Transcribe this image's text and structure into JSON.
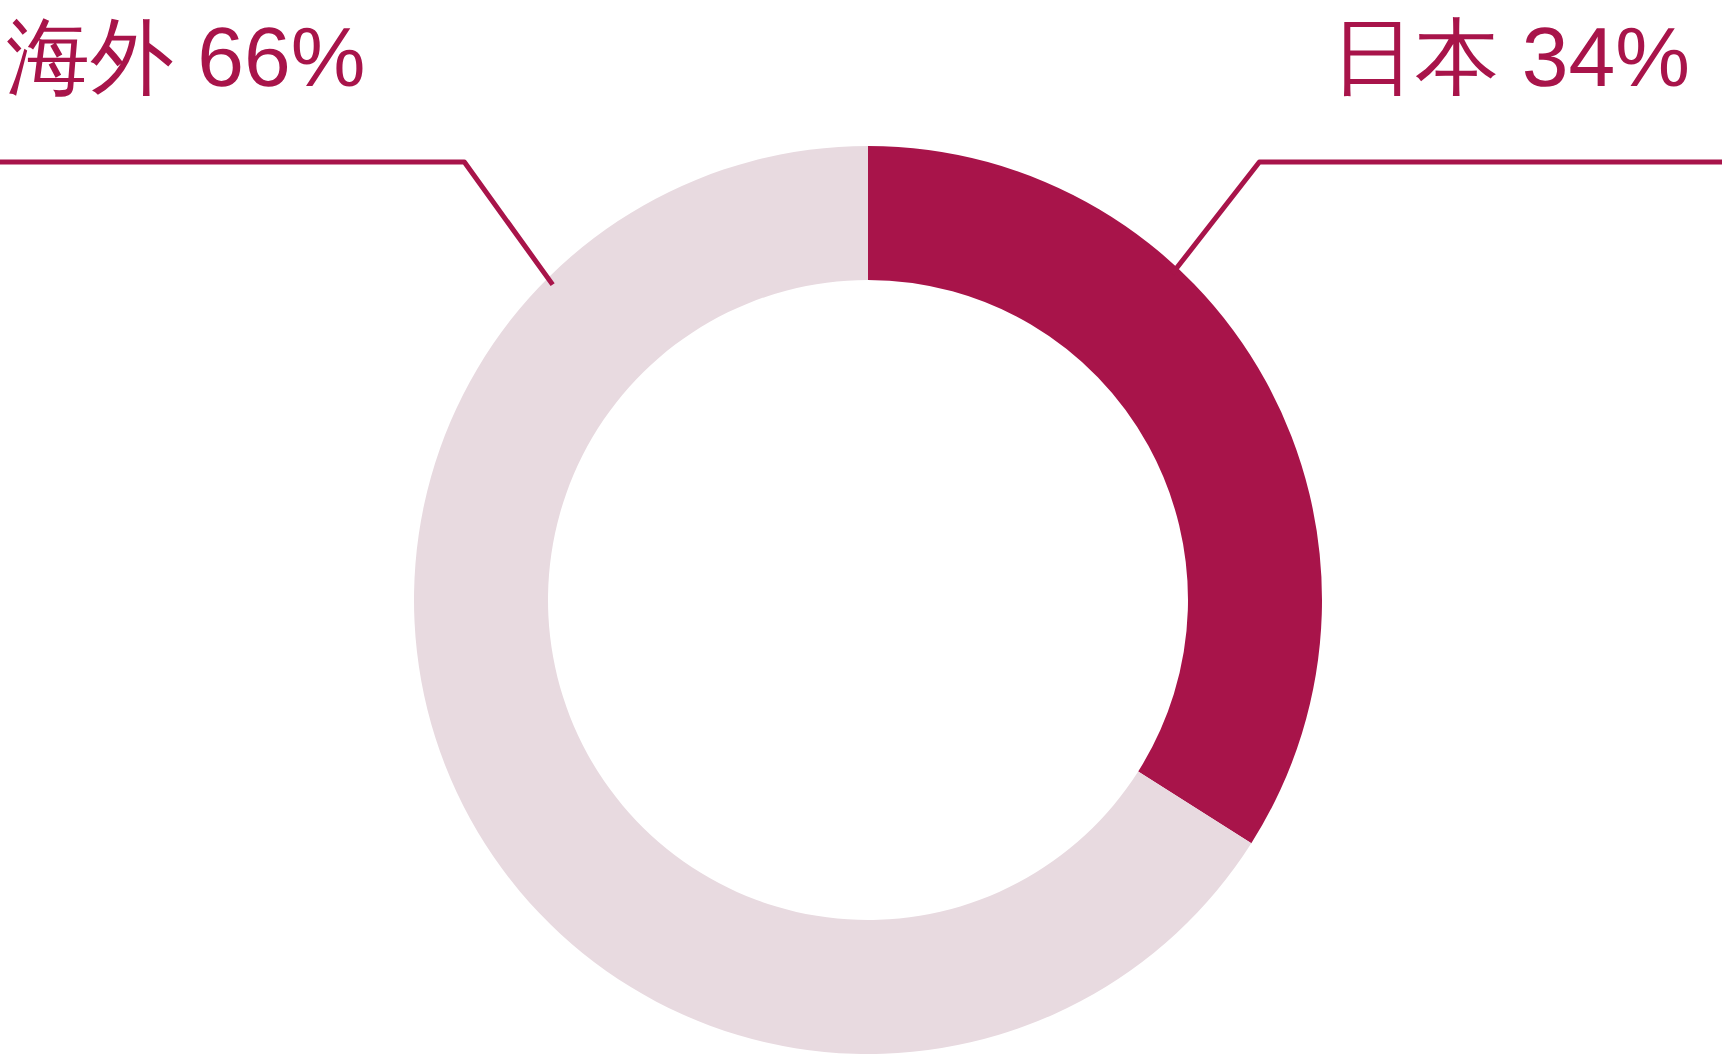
{
  "chart_data": {
    "type": "donut",
    "categories": [
      "日本",
      "海外"
    ],
    "values": [
      34,
      66
    ],
    "value_labels": [
      "34%",
      "66%"
    ],
    "colors": [
      "#a8144a",
      "#e8dae0"
    ]
  }
}
